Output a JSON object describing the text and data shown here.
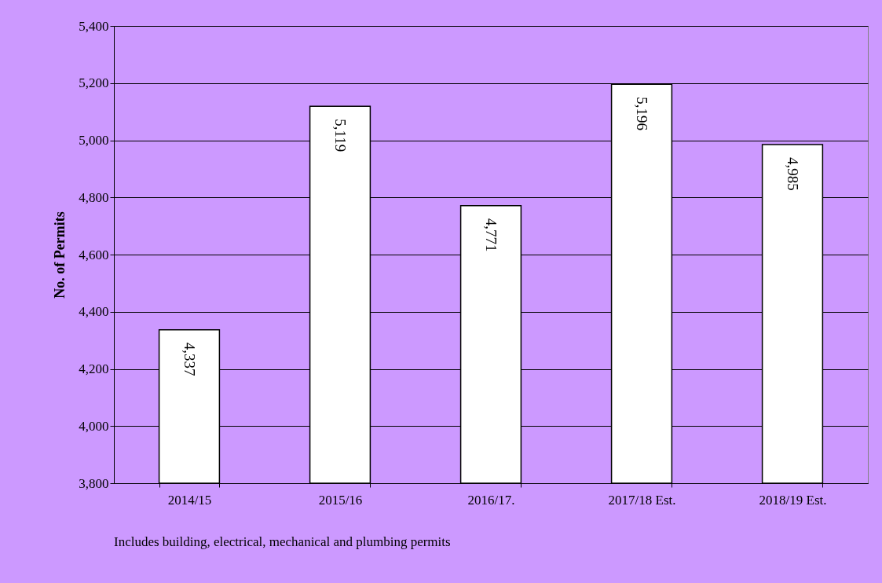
{
  "chart_data": {
    "type": "bar",
    "ylabel": "No. of Permits",
    "categories": [
      "2014/15",
      "2015/16",
      "2016/17.",
      "2017/18 Est.",
      "2018/19 Est."
    ],
    "values": [
      4337,
      5119,
      4771,
      5196,
      4985
    ],
    "color": "#ffffff",
    "value_labels": [
      "4,337",
      "5,119",
      "4,771",
      "5,196",
      "4,985"
    ],
    "ylim": [
      3800,
      5400
    ],
    "yticks": [
      {
        "value": 3800,
        "label": "3,800"
      },
      {
        "value": 4000,
        "label": "4,000"
      },
      {
        "value": 4200,
        "label": "4,200"
      },
      {
        "value": 4400,
        "label": "4,400"
      },
      {
        "value": 4600,
        "label": "4,600"
      },
      {
        "value": 4800,
        "label": "4,800"
      },
      {
        "value": 5000,
        "label": "5,000"
      },
      {
        "value": 5200,
        "label": "5,200"
      },
      {
        "value": 5400,
        "label": "5,400"
      }
    ],
    "grid": "y",
    "annotations": [
      "Includes building, electrical, mechanical and plumbing permits"
    ]
  }
}
